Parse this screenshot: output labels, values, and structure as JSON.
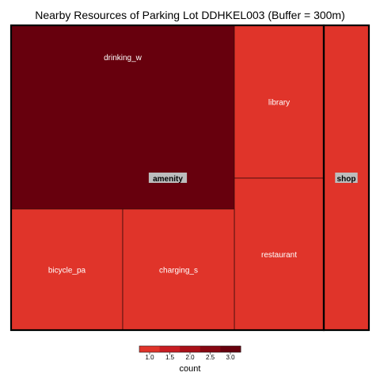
{
  "chart_data": {
    "type": "treemap",
    "title": "Nearby Resources of Parking Lot DDHKEL003 (Buffer = 300m)",
    "groups": [
      {
        "name": "amenity",
        "items": [
          {
            "label": "drinking_w",
            "count": 3,
            "color": "#67000d"
          },
          {
            "label": "library",
            "count": 1,
            "color": "#e0342a"
          },
          {
            "label": "restaurant",
            "count": 1,
            "color": "#e0342a"
          },
          {
            "label": "bicycle_pa",
            "count": 1,
            "color": "#e0342a"
          },
          {
            "label": "charging_s",
            "count": 1,
            "color": "#e0342a"
          }
        ]
      },
      {
        "name": "shop",
        "items": [
          {
            "label": "",
            "count": 1,
            "color": "#e0342a"
          }
        ]
      }
    ],
    "legend": {
      "title": "count",
      "ticks": [
        "1.0",
        "1.5",
        "2.0",
        "2.5",
        "3.0"
      ],
      "colors": [
        "#e0342a",
        "#c81d22",
        "#a91018",
        "#860711",
        "#67000d"
      ],
      "range": [
        1,
        3
      ]
    }
  }
}
